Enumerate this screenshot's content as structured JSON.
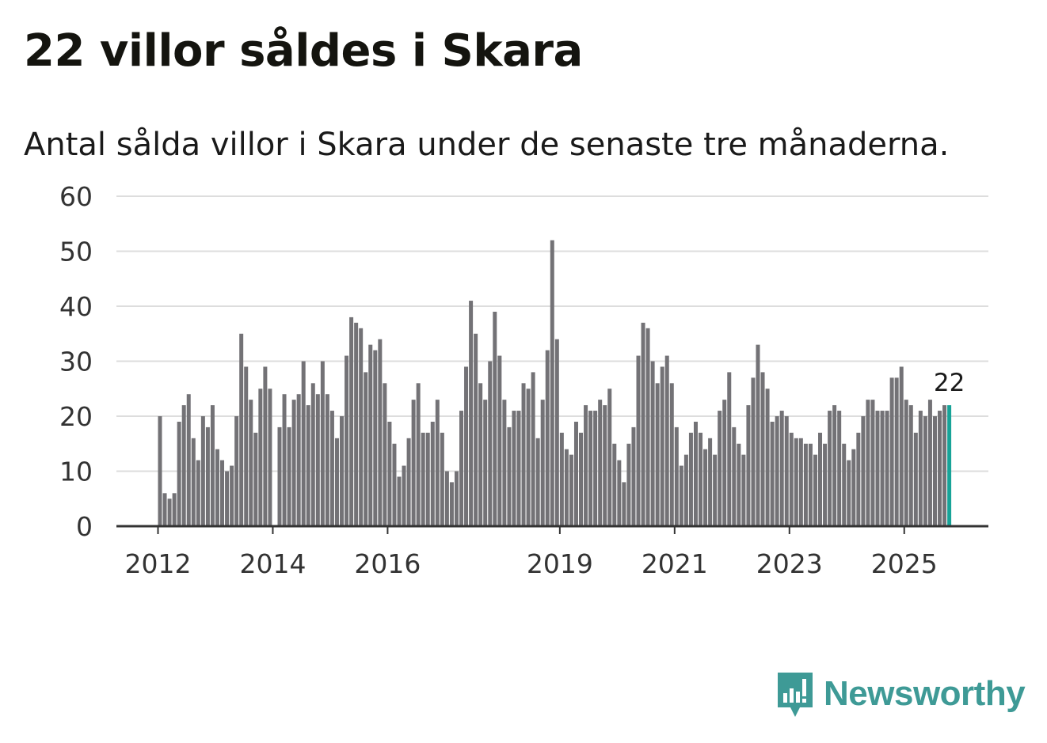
{
  "header": {
    "title": "22 villor såldes i Skara",
    "subtitle": "Antal sålda villor i Skara under de senaste tre månaderna."
  },
  "brand": {
    "name": "Newsworthy",
    "icon": "newsworthy-logo-icon",
    "color": "#3e9a96"
  },
  "colors": {
    "bar": "#737276",
    "highlight": "#17a398",
    "grid": "#dddddd",
    "axis": "#333333",
    "tick_text": "#333333"
  },
  "chart_data": {
    "type": "bar",
    "title": "22 villor såldes i Skara",
    "subtitle": "Antal sålda villor i Skara under de senaste tre månaderna.",
    "xlabel": "",
    "ylabel": "",
    "ylim": [
      0,
      60
    ],
    "yticks": [
      0,
      10,
      20,
      30,
      40,
      50,
      60
    ],
    "grid": true,
    "start": "2012-01",
    "frequency": "monthly",
    "xticks": [
      {
        "label": "2012",
        "index": 0
      },
      {
        "label": "2014",
        "index": 24
      },
      {
        "label": "2016",
        "index": 48
      },
      {
        "label": "2019",
        "index": 84
      },
      {
        "label": "2021",
        "index": 108
      },
      {
        "label": "2023",
        "index": 132
      },
      {
        "label": "2025",
        "index": 156
      }
    ],
    "values": [
      20,
      6,
      5,
      6,
      19,
      22,
      24,
      16,
      12,
      20,
      18,
      22,
      14,
      12,
      10,
      11,
      20,
      35,
      29,
      23,
      17,
      25,
      29,
      25,
      0,
      18,
      24,
      18,
      23,
      24,
      30,
      22,
      26,
      24,
      30,
      24,
      21,
      16,
      20,
      31,
      38,
      37,
      36,
      28,
      33,
      32,
      34,
      26,
      19,
      15,
      9,
      11,
      16,
      23,
      26,
      17,
      17,
      19,
      23,
      17,
      10,
      8,
      10,
      21,
      29,
      41,
      35,
      26,
      23,
      30,
      39,
      31,
      23,
      18,
      21,
      21,
      26,
      25,
      28,
      16,
      23,
      32,
      52,
      34,
      17,
      14,
      13,
      19,
      17,
      22,
      21,
      21,
      23,
      22,
      25,
      15,
      12,
      8,
      15,
      18,
      31,
      37,
      36,
      30,
      26,
      29,
      31,
      26,
      18,
      11,
      13,
      17,
      19,
      17,
      14,
      16,
      13,
      21,
      23,
      28,
      18,
      15,
      13,
      22,
      27,
      33,
      28,
      25,
      19,
      20,
      21,
      20,
      17,
      16,
      16,
      15,
      15,
      13,
      17,
      15,
      21,
      22,
      21,
      15,
      12,
      14,
      17,
      20,
      23,
      23,
      21,
      21,
      21,
      27,
      27,
      29,
      23,
      22,
      17,
      21,
      20,
      23,
      20,
      21,
      22,
      22
    ],
    "highlight_index": 165,
    "highlight_label": "22"
  }
}
